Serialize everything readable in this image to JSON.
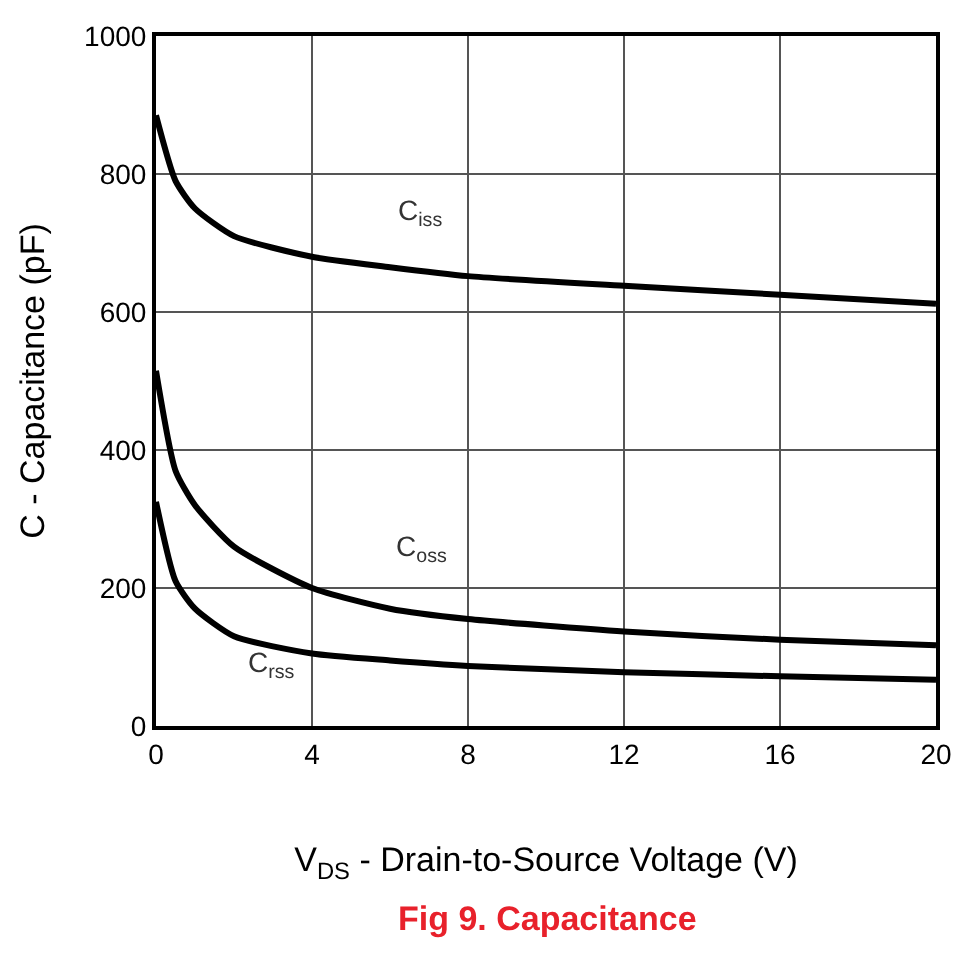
{
  "chart_data": {
    "type": "line",
    "title": "Fig 9. Capacitance",
    "xlabel": "V$_{DS}$ - Drain-to-Source Voltage (V)",
    "ylabel": "C - Capacitance (pF)",
    "x": [
      0,
      0.5,
      1,
      2,
      4,
      6,
      8,
      12,
      16,
      20
    ],
    "series": [
      {
        "name": "C$_{iss}$",
        "color": "#000000",
        "values": [
          885,
          790,
          750,
          710,
          680,
          665,
          652,
          638,
          625,
          612
        ]
      },
      {
        "name": "C$_{oss}$",
        "color": "#000000",
        "values": [
          515,
          370,
          320,
          260,
          200,
          170,
          155,
          137,
          125,
          117
        ]
      },
      {
        "name": "C$_{rss}$",
        "color": "#000000",
        "values": [
          325,
          210,
          170,
          130,
          105,
          95,
          87,
          78,
          72,
          67
        ]
      }
    ],
    "xlim": [
      0,
      20
    ],
    "xticks": [
      0,
      4,
      8,
      12,
      16,
      20
    ],
    "ylim": [
      0,
      1000
    ],
    "yticks": [
      0,
      200,
      400,
      600,
      800,
      1000
    ],
    "grid": true,
    "legend": false,
    "marker": "none",
    "line_style": "solid"
  }
}
